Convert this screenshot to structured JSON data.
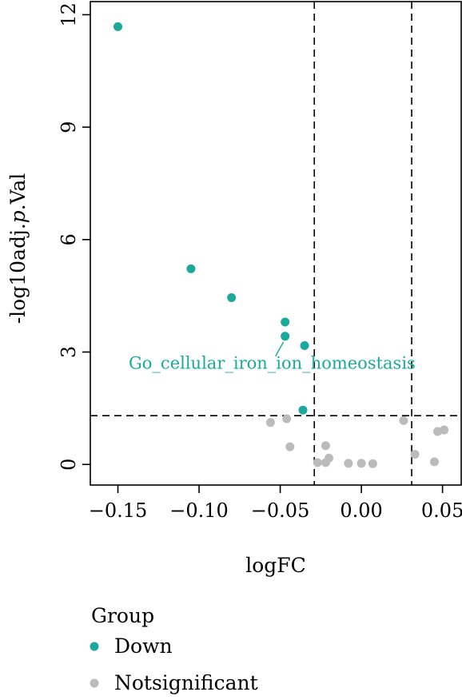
{
  "chart_data": {
    "type": "scatter",
    "xlabel": "logFC",
    "ylabel_prefix": "-log10adj.",
    "ylabel_italic": "p",
    "ylabel_suffix": ".Val",
    "xlim": [
      -0.167,
      0.062
    ],
    "ylim": [
      -0.55,
      12.35
    ],
    "xticks": [
      -0.15,
      -0.1,
      -0.05,
      0.0,
      0.05
    ],
    "xtick_labels": [
      "−0.15",
      "−0.10",
      "−0.05",
      "0.00",
      "0.05"
    ],
    "yticks": [
      0,
      3,
      6,
      9,
      12
    ],
    "ytick_labels": [
      "0",
      "3",
      "6",
      "9",
      "12"
    ],
    "thresholds": {
      "x": [
        -0.029,
        0.031
      ],
      "y": 1.3
    },
    "series": [
      {
        "name": "Down",
        "color": "#1aa99a",
        "points": [
          [
            -0.15,
            11.68
          ],
          [
            -0.105,
            5.22
          ],
          [
            -0.08,
            4.45
          ],
          [
            -0.047,
            3.8
          ],
          [
            -0.047,
            3.42
          ],
          [
            -0.035,
            3.17
          ],
          [
            -0.036,
            1.45
          ]
        ]
      },
      {
        "name": "Notsignificant",
        "color": "#bbbbbb",
        "points": [
          [
            -0.056,
            1.12
          ],
          [
            -0.046,
            1.22
          ],
          [
            -0.044,
            0.47
          ],
          [
            -0.022,
            0.5
          ],
          [
            -0.02,
            0.17
          ],
          [
            -0.022,
            0.05
          ],
          [
            -0.027,
            0.05
          ],
          [
            -0.008,
            0.03
          ],
          [
            0.0,
            0.03
          ],
          [
            0.007,
            0.02
          ],
          [
            0.026,
            1.17
          ],
          [
            0.033,
            0.27
          ],
          [
            0.045,
            0.07
          ],
          [
            0.047,
            0.88
          ],
          [
            0.051,
            0.92
          ]
        ]
      }
    ],
    "annotation": {
      "text": "Go_cellular_iron_ion_homeostasis",
      "color": "#1aa99a",
      "point": [
        -0.047,
        3.42
      ],
      "text_at": [
        -0.055,
        2.72
      ]
    },
    "legend": {
      "title": "Group",
      "placement": "bottom",
      "entries": [
        "Down",
        "Notsignificant"
      ]
    }
  }
}
